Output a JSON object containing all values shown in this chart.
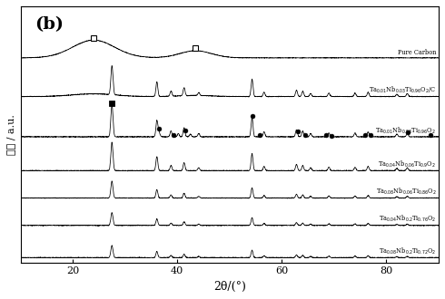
{
  "title_label": "(b)",
  "xlabel": "2θ/(°)",
  "ylabel": "强度 / a.u.",
  "xlim": [
    10,
    90
  ],
  "xticklabels": [
    "20",
    "40",
    "60",
    "80"
  ],
  "xticks": [
    20,
    40,
    60,
    80
  ],
  "background_color": "#ffffff",
  "series_labels": [
    "Pure Carbon",
    "Ta$_{0.01}$Nb$_{0.03}$Ti$_{0.96}$O$_2$/C",
    "Ta$_{0.01}$Nb$_{0.03}$Ti$_{0.96}$O$_2$",
    "Ta$_{0.04}$Nb$_{0.06}$Ti$_{0.9}$O$_2$",
    "Ta$_{0.08}$Nb$_{0.06}$Ti$_{0.86}$O$_2$",
    "Ta$_{0.04}$Nb$_{0.2}$Ti$_{0.76}$O$_2$",
    "Ta$_{0.08}$Nb$_{0.2}$Ti$_{0.72}$O$_2$"
  ],
  "square_markers_carbon": [
    24.0,
    43.5
  ],
  "square_marker_rutile": [
    27.5
  ],
  "dot_markers": [
    27.5,
    36.5,
    38.5,
    41.0,
    53.5,
    55.5,
    63.5,
    65.0,
    68.5,
    69.5,
    75.5,
    76.5,
    84.0,
    88.0
  ],
  "offsets": [
    6.2,
    5.0,
    3.75,
    2.7,
    1.85,
    1.0,
    0.0
  ],
  "line_color": "#000000",
  "marker_color": "#000000"
}
